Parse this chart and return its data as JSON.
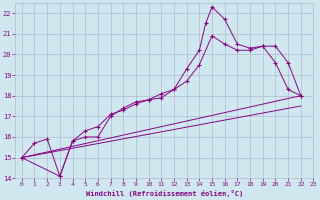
{
  "xlabel": "Windchill (Refroidissement éolien,°C)",
  "bg_color": "#cfe8f0",
  "grid_color": "#b0b8d0",
  "line_color": "#880088",
  "xlim": [
    0,
    22
  ],
  "ylim": [
    14,
    22.5
  ],
  "xticks": [
    0,
    1,
    2,
    3,
    4,
    5,
    6,
    7,
    8,
    9,
    10,
    11,
    12,
    13,
    14,
    15,
    16,
    17,
    18,
    19,
    20,
    21,
    22,
    23
  ],
  "yticks": [
    14,
    15,
    16,
    17,
    18,
    19,
    20,
    21,
    22
  ],
  "series1_x": [
    0,
    1,
    2,
    3,
    4,
    5,
    6,
    7,
    8,
    9,
    10,
    11,
    12,
    13,
    14,
    14.5,
    15,
    16,
    17,
    18,
    19,
    20,
    21,
    22
  ],
  "series1_y": [
    15.0,
    15.7,
    15.9,
    14.1,
    15.8,
    16.3,
    16.5,
    17.1,
    17.3,
    17.6,
    17.8,
    18.1,
    18.3,
    19.3,
    20.2,
    21.5,
    22.3,
    21.7,
    20.5,
    20.3,
    20.4,
    19.6,
    18.3,
    18.0
  ],
  "series2_x": [
    0,
    3,
    4,
    5,
    6,
    7,
    8,
    9,
    10,
    11,
    12,
    13,
    14,
    15,
    16,
    17,
    18,
    19,
    20,
    21,
    22
  ],
  "series2_y": [
    15.0,
    14.1,
    15.8,
    16.0,
    16.0,
    17.0,
    17.4,
    17.7,
    17.8,
    17.9,
    18.3,
    18.7,
    19.5,
    20.9,
    20.5,
    20.2,
    20.2,
    20.4,
    20.4,
    19.6,
    18.0
  ],
  "series3_x": [
    0,
    22
  ],
  "series3_y": [
    15.0,
    18.0
  ],
  "series4_x": [
    0,
    22
  ],
  "series4_y": [
    15.0,
    17.5
  ],
  "figsize": [
    3.2,
    2.0
  ],
  "dpi": 100
}
